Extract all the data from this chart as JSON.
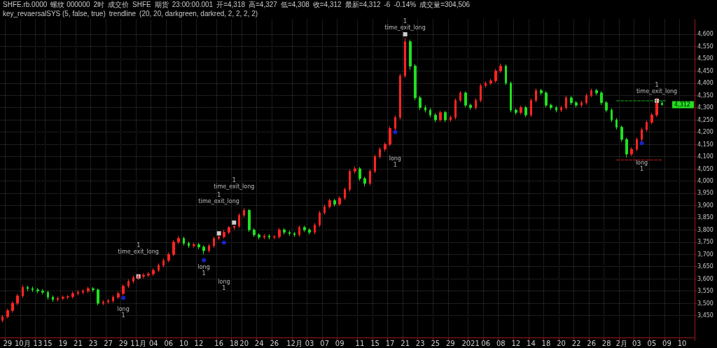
{
  "chart_data": {
    "type": "candlestick",
    "annotations": [
      "SHFE.rb.0000",
      "螺纹 000000",
      "2时",
      "成交价",
      "SHFE",
      "期货",
      "23:00:00.001",
      "开=4,318",
      "高=4,327",
      "低=4,308",
      "收=4,312",
      "最新=4,312",
      "-6",
      "-0.14%",
      "成交量=304,506",
      "key_revaersalSYS (5, false, true)",
      "trendline",
      "(20, 20, darkgreen, darkred, 2, 2, 2, 2)",
      {
        "text": "4,312",
        "y": 4312
      }
    ],
    "categories": [
      null,
      "29",
      null,
      null,
      "10月",
      null,
      null,
      "13",
      null,
      "15",
      null,
      null,
      "19",
      null,
      null,
      "21",
      null,
      null,
      "23",
      null,
      null,
      "27",
      null,
      null,
      "29",
      null,
      null,
      "11月",
      null,
      null,
      "04",
      null,
      null,
      "06",
      null,
      null,
      "10",
      null,
      null,
      "12",
      null,
      null,
      null,
      "16",
      null,
      null,
      "18",
      null,
      "20",
      null,
      null,
      "24",
      null,
      null,
      "26",
      null,
      null,
      null,
      "12月",
      null,
      null,
      "03",
      null,
      null,
      "07",
      null,
      null,
      "09",
      null,
      null,
      null,
      "11",
      null,
      null,
      "15",
      null,
      null,
      "17",
      null,
      null,
      "21",
      null,
      null,
      "23",
      null,
      null,
      "25",
      null,
      null,
      "29",
      null,
      null,
      null,
      "2021",
      null,
      null,
      "06",
      null,
      null,
      "08",
      null,
      null,
      "12",
      null,
      null,
      "14",
      null,
      null,
      "18",
      null,
      null,
      "20",
      null,
      null,
      "22",
      null,
      null,
      "26",
      null,
      null,
      "28",
      null,
      null,
      "2月",
      null,
      null,
      "03",
      null,
      null,
      "05",
      null,
      null,
      "09",
      null,
      null,
      "10",
      null,
      null
    ],
    "ohlc": [
      [
        3430,
        3452,
        3422,
        3445
      ],
      [
        3445,
        3478,
        3438,
        3470
      ],
      [
        3470,
        3508,
        3462,
        3500
      ],
      [
        3500,
        3538,
        3492,
        3530
      ],
      [
        3530,
        3575,
        3522,
        3565
      ],
      [
        3565,
        3572,
        3550,
        3560
      ],
      [
        3560,
        3568,
        3546,
        3555
      ],
      [
        3555,
        3562,
        3541,
        3550
      ],
      [
        3550,
        3558,
        3536,
        3545
      ],
      [
        3545,
        3552,
        3515,
        3525
      ],
      [
        3525,
        3532,
        3506,
        3515
      ],
      [
        3515,
        3528,
        3507,
        3520
      ],
      [
        3520,
        3532,
        3512,
        3525
      ],
      [
        3525,
        3533,
        3516,
        3527
      ],
      [
        3527,
        3548,
        3519,
        3540
      ],
      [
        3540,
        3553,
        3532,
        3545
      ],
      [
        3545,
        3558,
        3537,
        3550
      ],
      [
        3550,
        3568,
        3542,
        3560
      ],
      [
        3560,
        3566,
        3546,
        3555
      ],
      [
        3555,
        3560,
        3492,
        3500
      ],
      [
        3500,
        3513,
        3492,
        3505
      ],
      [
        3505,
        3518,
        3497,
        3510
      ],
      [
        3510,
        3533,
        3502,
        3525
      ],
      [
        3525,
        3548,
        3517,
        3540
      ],
      [
        3540,
        3578,
        3532,
        3570
      ],
      [
        3570,
        3598,
        3562,
        3590
      ],
      [
        3590,
        3613,
        3582,
        3605
      ],
      [
        3605,
        3620,
        3596,
        3610
      ],
      [
        3610,
        3623,
        3601,
        3615
      ],
      [
        3615,
        3628,
        3607,
        3620
      ],
      [
        3620,
        3643,
        3612,
        3635
      ],
      [
        3635,
        3663,
        3627,
        3655
      ],
      [
        3655,
        3683,
        3647,
        3675
      ],
      [
        3675,
        3708,
        3667,
        3700
      ],
      [
        3700,
        3758,
        3692,
        3750
      ],
      [
        3750,
        3775,
        3742,
        3765
      ],
      [
        3765,
        3772,
        3736,
        3745
      ],
      [
        3745,
        3752,
        3726,
        3735
      ],
      [
        3735,
        3748,
        3727,
        3740
      ],
      [
        3740,
        3747,
        3721,
        3730
      ],
      [
        3730,
        3737,
        3700,
        3715
      ],
      [
        3715,
        3743,
        3707,
        3735
      ],
      [
        3735,
        3773,
        3727,
        3765
      ],
      [
        3765,
        3778,
        3757,
        3772
      ],
      [
        3772,
        3800,
        3765,
        3790
      ],
      [
        3790,
        3815,
        3782,
        3810
      ],
      [
        3810,
        3818,
        3800,
        3815
      ],
      [
        3815,
        3868,
        3808,
        3860
      ],
      [
        3860,
        3890,
        3852,
        3880
      ],
      [
        3880,
        3885,
        3792,
        3800
      ],
      [
        3800,
        3806,
        3771,
        3780
      ],
      [
        3780,
        3787,
        3761,
        3770
      ],
      [
        3770,
        3783,
        3762,
        3775
      ],
      [
        3775,
        3782,
        3761,
        3770
      ],
      [
        3770,
        3780,
        3762,
        3772
      ],
      [
        3772,
        3808,
        3764,
        3800
      ],
      [
        3800,
        3807,
        3781,
        3790
      ],
      [
        3790,
        3797,
        3776,
        3785
      ],
      [
        3785,
        3792,
        3771,
        3780
      ],
      [
        3780,
        3818,
        3772,
        3810
      ],
      [
        3810,
        3817,
        3791,
        3800
      ],
      [
        3800,
        3807,
        3781,
        3790
      ],
      [
        3790,
        3828,
        3782,
        3820
      ],
      [
        3820,
        3878,
        3812,
        3870
      ],
      [
        3870,
        3903,
        3862,
        3895
      ],
      [
        3895,
        3928,
        3887,
        3920
      ],
      [
        3920,
        3927,
        3896,
        3905
      ],
      [
        3905,
        3938,
        3897,
        3930
      ],
      [
        3930,
        3973,
        3922,
        3965
      ],
      [
        3965,
        4048,
        3957,
        4040
      ],
      [
        4040,
        4060,
        4030,
        4050
      ],
      [
        4050,
        4057,
        4001,
        4010
      ],
      [
        4010,
        4017,
        3978,
        3990
      ],
      [
        3990,
        4048,
        3982,
        4040
      ],
      [
        4040,
        4108,
        4032,
        4100
      ],
      [
        4100,
        4138,
        4092,
        4130
      ],
      [
        4130,
        4158,
        4120,
        4150
      ],
      [
        4150,
        4223,
        4142,
        4215
      ],
      [
        4215,
        4268,
        4208,
        4260
      ],
      [
        4260,
        4438,
        4252,
        4430
      ],
      [
        4430,
        4585,
        4422,
        4570
      ],
      [
        4570,
        4578,
        4455,
        4470
      ],
      [
        4470,
        4478,
        4330,
        4340
      ],
      [
        4340,
        4348,
        4290,
        4300
      ],
      [
        4300,
        4310,
        4280,
        4290
      ],
      [
        4290,
        4298,
        4260,
        4270
      ],
      [
        4270,
        4278,
        4240,
        4250
      ],
      [
        4250,
        4288,
        4242,
        4280
      ],
      [
        4280,
        4287,
        4241,
        4250
      ],
      [
        4250,
        4268,
        4242,
        4260
      ],
      [
        4260,
        4338,
        4252,
        4330
      ],
      [
        4330,
        4368,
        4322,
        4360
      ],
      [
        4360,
        4366,
        4301,
        4310
      ],
      [
        4310,
        4317,
        4291,
        4300
      ],
      [
        4300,
        4338,
        4292,
        4330
      ],
      [
        4330,
        4398,
        4322,
        4390
      ],
      [
        4390,
        4408,
        4382,
        4400
      ],
      [
        4400,
        4418,
        4392,
        4410
      ],
      [
        4410,
        4458,
        4402,
        4450
      ],
      [
        4450,
        4480,
        4442,
        4470
      ],
      [
        4470,
        4477,
        4392,
        4400
      ],
      [
        4400,
        4407,
        4281,
        4290
      ],
      [
        4290,
        4297,
        4271,
        4280
      ],
      [
        4280,
        4308,
        4272,
        4300
      ],
      [
        4300,
        4307,
        4261,
        4270
      ],
      [
        4270,
        4338,
        4262,
        4330
      ],
      [
        4330,
        4378,
        4322,
        4370
      ],
      [
        4370,
        4377,
        4351,
        4360
      ],
      [
        4360,
        4367,
        4301,
        4310
      ],
      [
        4310,
        4317,
        4291,
        4300
      ],
      [
        4300,
        4307,
        4281,
        4290
      ],
      [
        4290,
        4308,
        4282,
        4300
      ],
      [
        4300,
        4348,
        4292,
        4340
      ],
      [
        4340,
        4347,
        4311,
        4320
      ],
      [
        4320,
        4327,
        4301,
        4310
      ],
      [
        4310,
        4328,
        4302,
        4320
      ],
      [
        4320,
        4358,
        4312,
        4350
      ],
      [
        4350,
        4378,
        4342,
        4370
      ],
      [
        4370,
        4377,
        4351,
        4360
      ],
      [
        4360,
        4367,
        4311,
        4320
      ],
      [
        4320,
        4327,
        4281,
        4290
      ],
      [
        4290,
        4297,
        4241,
        4250
      ],
      [
        4250,
        4257,
        4211,
        4220
      ],
      [
        4220,
        4227,
        4161,
        4170
      ],
      [
        4170,
        4177,
        4096,
        4110
      ],
      [
        4110,
        4138,
        4102,
        4130
      ],
      [
        4130,
        4178,
        4122,
        4170
      ],
      [
        4170,
        4218,
        4162,
        4210
      ],
      [
        4210,
        4248,
        4202,
        4240
      ],
      [
        4240,
        4278,
        4232,
        4270
      ],
      [
        4270,
        4340,
        4262,
        4318
      ],
      [
        4318,
        4327,
        4308,
        4312
      ],
      null,
      null,
      null,
      null,
      null,
      null
    ],
    "series": [
      {
        "type": "scatter",
        "name": "long\n1",
        "marker": "circle",
        "color": "#1a2cff",
        "values": [
          null,
          null,
          null,
          null,
          null,
          null,
          null,
          null,
          null,
          null,
          null,
          null,
          null,
          null,
          null,
          null,
          null,
          null,
          null,
          null,
          null,
          null,
          null,
          null,
          3522,
          null,
          null,
          null,
          null,
          null,
          null,
          null,
          null,
          null,
          null,
          null,
          null,
          null,
          null,
          null,
          3676,
          null,
          null,
          null,
          3748,
          null,
          null,
          null,
          null,
          null,
          null,
          null,
          null,
          null,
          null,
          null,
          null,
          null,
          null,
          null,
          null,
          null,
          null,
          null,
          null,
          null,
          null,
          null,
          null,
          null,
          null,
          null,
          null,
          null,
          null,
          null,
          null,
          null,
          4200,
          null,
          null,
          null,
          null,
          null,
          null,
          null,
          null,
          null,
          null,
          null,
          null,
          null,
          null,
          null,
          null,
          null,
          null,
          null,
          null,
          null,
          null,
          null,
          null,
          null,
          null,
          null,
          null,
          null,
          null,
          null,
          null,
          null,
          null,
          null,
          null,
          null,
          null,
          null,
          null,
          null,
          null,
          null,
          null,
          null,
          null,
          null,
          null,
          4155,
          null,
          null,
          null,
          null,
          null,
          null,
          null,
          null,
          null,
          null
        ]
      },
      {
        "type": "scatter",
        "name": "1\ntime_exit_long",
        "marker": "square",
        "color": "#ffffff",
        "values": [
          null,
          null,
          null,
          null,
          null,
          null,
          null,
          null,
          null,
          null,
          null,
          null,
          null,
          null,
          null,
          null,
          null,
          null,
          null,
          null,
          null,
          null,
          null,
          null,
          null,
          null,
          null,
          3610,
          null,
          null,
          null,
          null,
          null,
          null,
          null,
          null,
          null,
          null,
          null,
          null,
          null,
          null,
          null,
          3786,
          null,
          null,
          3830,
          null,
          null,
          null,
          null,
          null,
          null,
          null,
          null,
          null,
          null,
          null,
          null,
          null,
          null,
          null,
          null,
          null,
          null,
          null,
          null,
          null,
          null,
          null,
          null,
          null,
          null,
          null,
          null,
          null,
          null,
          null,
          null,
          null,
          4600,
          null,
          null,
          null,
          null,
          null,
          null,
          null,
          null,
          null,
          null,
          null,
          null,
          null,
          null,
          null,
          null,
          null,
          null,
          null,
          null,
          null,
          null,
          null,
          null,
          null,
          null,
          null,
          null,
          null,
          null,
          null,
          null,
          null,
          null,
          null,
          null,
          null,
          null,
          null,
          null,
          null,
          null,
          null,
          null,
          null,
          null,
          null,
          null,
          null,
          4328,
          null,
          null,
          null,
          null,
          null,
          null,
          null
        ]
      },
      {
        "type": "line",
        "line_style": "dashed",
        "color": "#1fa81f",
        "values": [
          null,
          null,
          null,
          null,
          null,
          null,
          null,
          null,
          null,
          null,
          null,
          null,
          null,
          null,
          null,
          null,
          null,
          null,
          null,
          null,
          null,
          null,
          null,
          null,
          null,
          null,
          null,
          null,
          null,
          null,
          null,
          null,
          null,
          null,
          null,
          null,
          null,
          null,
          null,
          null,
          null,
          null,
          null,
          null,
          null,
          null,
          null,
          null,
          null,
          null,
          null,
          null,
          null,
          null,
          null,
          null,
          null,
          null,
          null,
          null,
          null,
          null,
          null,
          null,
          null,
          null,
          null,
          null,
          null,
          null,
          null,
          null,
          null,
          null,
          null,
          null,
          null,
          null,
          null,
          null,
          null,
          null,
          null,
          null,
          null,
          null,
          null,
          null,
          null,
          null,
          null,
          null,
          null,
          null,
          null,
          null,
          null,
          null,
          null,
          null,
          null,
          null,
          null,
          null,
          null,
          null,
          null,
          null,
          null,
          null,
          null,
          null,
          null,
          null,
          null,
          null,
          null,
          null,
          null,
          null,
          null,
          null,
          4328,
          4328,
          4328,
          4328,
          4328,
          4328,
          4328,
          4328,
          4328,
          4328,
          4328,
          null,
          null,
          null,
          null,
          null
        ]
      },
      {
        "type": "line",
        "line_style": "dashed",
        "color": "#c81e1e",
        "values": [
          null,
          null,
          null,
          null,
          null,
          null,
          null,
          null,
          null,
          null,
          null,
          null,
          null,
          null,
          null,
          null,
          null,
          null,
          null,
          null,
          null,
          null,
          null,
          null,
          null,
          null,
          null,
          null,
          null,
          null,
          null,
          null,
          null,
          null,
          null,
          null,
          null,
          null,
          null,
          null,
          null,
          null,
          null,
          null,
          null,
          null,
          null,
          null,
          null,
          null,
          null,
          null,
          null,
          null,
          null,
          null,
          null,
          null,
          null,
          null,
          null,
          null,
          null,
          null,
          null,
          null,
          null,
          null,
          null,
          null,
          null,
          null,
          null,
          null,
          null,
          null,
          null,
          null,
          null,
          null,
          null,
          null,
          null,
          null,
          null,
          null,
          null,
          null,
          null,
          null,
          null,
          null,
          null,
          null,
          null,
          null,
          null,
          null,
          null,
          null,
          null,
          null,
          null,
          null,
          null,
          null,
          null,
          null,
          null,
          null,
          null,
          null,
          null,
          null,
          null,
          null,
          null,
          null,
          null,
          null,
          null,
          null,
          4086,
          4086,
          4086,
          4086,
          4086,
          4086,
          4086,
          4086,
          4086,
          4086,
          null,
          null,
          null,
          null,
          null,
          null
        ]
      }
    ],
    "ylim": [
      3360,
      4660
    ],
    "yticks": [
      {
        "value": 3450,
        "label": "3,450"
      },
      {
        "value": 3500,
        "label": "3,500"
      },
      {
        "value": 3550,
        "label": "3,550"
      },
      {
        "value": 3600,
        "label": "3,600"
      },
      {
        "value": 3650,
        "label": "3,650"
      },
      {
        "value": 3700,
        "label": "3,700"
      },
      {
        "value": 3750,
        "label": "3,750"
      },
      {
        "value": 3800,
        "label": "3,800"
      },
      {
        "value": 3850,
        "label": "3,850"
      },
      {
        "value": 3900,
        "label": "3,900"
      },
      {
        "value": 3950,
        "label": "3,950"
      },
      {
        "value": 4000,
        "label": "4,000"
      },
      {
        "value": 4050,
        "label": "4,050"
      },
      {
        "value": 4100,
        "label": "4,100"
      },
      {
        "value": 4150,
        "label": "4,150"
      },
      {
        "value": 4200,
        "label": "4,200"
      },
      {
        "value": 4250,
        "label": "4,250"
      },
      {
        "value": 4300,
        "label": "4,300"
      },
      {
        "value": 4350,
        "label": "4,350"
      },
      {
        "value": 4400,
        "label": "4,400"
      },
      {
        "value": 4450,
        "label": "4,450"
      },
      {
        "value": 4500,
        "label": "4,500"
      },
      {
        "value": 4550,
        "label": "4,550"
      },
      {
        "value": 4600,
        "label": "4,600"
      }
    ],
    "grid": true
  }
}
